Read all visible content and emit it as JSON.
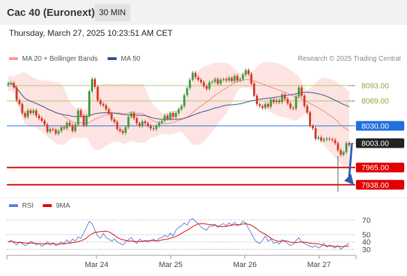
{
  "header": {
    "title": "Cac 40 (Euronext)",
    "timeframe": "30 MIN"
  },
  "timestamp": "Thursday, March 27, 2025 10:23:51 AM CET",
  "legend": {
    "ma20_bb": {
      "label": "MA 20 + Bollinger Bands",
      "color": "#f08a85"
    },
    "ma50": {
      "label": "MA 50",
      "color": "#2f4f8f"
    },
    "rsi": {
      "label": "RSI",
      "color": "#5b7fd6"
    },
    "rsi_ma": {
      "label": "9MA",
      "color": "#e00000"
    }
  },
  "credit": "Research © 2025 Trading Central",
  "chart_data": {
    "type": "line",
    "price_panel": {
      "ylim": [
        7927,
        8121
      ],
      "levels": [
        {
          "label": "8093.00",
          "value": 8093,
          "kind": "resistance-green",
          "color": "#a6c86a"
        },
        {
          "label": "8069.00",
          "value": 8069,
          "kind": "resistance-green",
          "color": "#a6c86a"
        },
        {
          "label": "8030.00",
          "value": 8030,
          "kind": "pivot",
          "color": "#1f6fe0"
        },
        {
          "label": "8003.00",
          "value": 8003,
          "kind": "last-price",
          "color": "#222222"
        },
        {
          "label": "7965.00",
          "value": 7965,
          "kind": "support-red",
          "color": "#e00000"
        },
        {
          "label": "7938.00",
          "value": 7938,
          "kind": "support-red",
          "color": "#e00000"
        }
      ],
      "close": [
        8096,
        8097,
        8090,
        8070,
        8064,
        8050,
        8044,
        8054,
        8050,
        8054,
        8046,
        8042,
        8038,
        8032,
        8021,
        8025,
        8024,
        8018,
        8022,
        8028,
        8026,
        8035,
        8031,
        8022,
        8032,
        8054,
        8046,
        8031,
        8046,
        8084,
        8103,
        8091,
        8070,
        8064,
        8062,
        8056,
        8049,
        8040,
        8036,
        8025,
        8022,
        8019,
        8028,
        8044,
        8050,
        8042,
        8034,
        8030,
        8037,
        8034,
        8030,
        8026,
        8025,
        8030,
        8035,
        8038,
        8046,
        8041,
        8050,
        8044,
        8050,
        8056,
        8061,
        8078,
        8089,
        8102,
        8113,
        8106,
        8102,
        8098,
        8092,
        8088,
        8098,
        8099,
        8103,
        8096,
        8102,
        8103,
        8101,
        8105,
        8100,
        8108,
        8101,
        8103,
        8110,
        8117,
        8111,
        8096,
        8077,
        8064,
        8061,
        8058,
        8064,
        8060,
        8071,
        8067,
        8070,
        8067,
        8079,
        8072,
        8065,
        8058,
        8057,
        8076,
        8090,
        8077,
        8061,
        8051,
        8030,
        8026,
        8010,
        8012,
        8007,
        8009,
        8010,
        8009,
        8008,
        8003,
        7992,
        7985,
        7989,
        8003,
        8000
      ]
    },
    "rsi_panel": {
      "ylim": [
        20,
        82
      ],
      "ticks": [
        70,
        50,
        40,
        30
      ],
      "rsi": [
        40,
        42,
        39,
        36,
        40,
        38,
        35,
        37,
        41,
        39,
        36,
        38,
        34,
        37,
        40,
        36,
        39,
        35,
        37,
        40,
        38,
        43,
        39,
        44,
        41,
        47,
        45,
        52,
        60,
        68,
        65,
        56,
        48,
        45,
        52,
        46,
        44,
        41,
        44,
        40,
        38,
        36,
        40,
        43,
        46,
        41,
        38,
        44,
        41,
        42,
        40,
        42,
        44,
        41,
        45,
        46,
        49,
        47,
        52,
        48,
        56,
        60,
        62,
        66,
        63,
        70,
        72,
        68,
        65,
        60,
        58,
        56,
        62,
        61,
        64,
        60,
        63,
        65,
        62,
        66,
        63,
        67,
        62,
        64,
        68,
        66,
        58,
        52,
        44,
        40,
        38,
        42,
        48,
        41,
        44,
        38,
        40,
        37,
        43,
        41,
        38,
        35,
        37,
        42,
        46,
        40,
        38,
        36,
        34,
        33,
        35,
        32,
        34,
        38,
        33,
        36,
        34,
        32,
        35,
        30,
        33,
        36,
        38
      ]
    },
    "x_ticks": [
      {
        "label": "Mar 24",
        "index": 27
      },
      {
        "label": "Mar 25",
        "index": 54
      },
      {
        "label": "Mar 26",
        "index": 81
      },
      {
        "label": "Mar 27",
        "index": 108
      }
    ]
  }
}
